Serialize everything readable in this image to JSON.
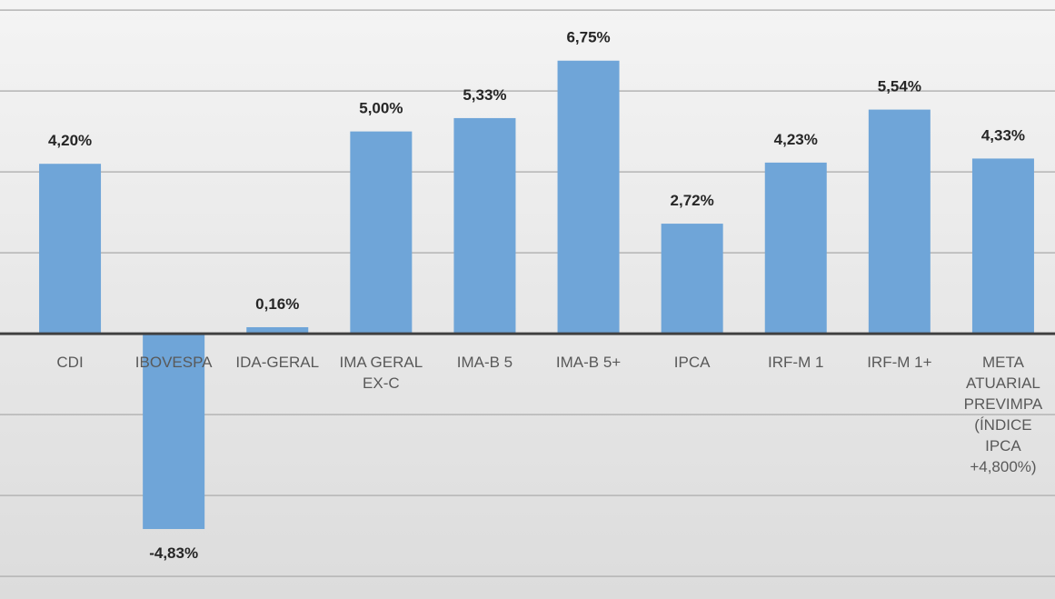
{
  "chart_data": {
    "type": "bar",
    "categories": [
      "CDI",
      "IBOVESPA",
      "IDA-GERAL",
      "IMA GERAL EX-C",
      "IMA-B 5",
      "IMA-B 5+",
      "IPCA",
      "IRF-M 1",
      "IRF-M 1+",
      "META ATUARIAL PREVIMPA (ÍNDICE IPCA +4,800%)"
    ],
    "values": [
      4.2,
      -4.83,
      0.16,
      5.0,
      5.33,
      6.75,
      2.72,
      4.23,
      5.54,
      4.33
    ],
    "value_labels": [
      "4,20%",
      "-4,83%",
      "0,16%",
      "5,00%",
      "5,33%",
      "6,75%",
      "2,72%",
      "4,23%",
      "5,54%",
      "4,33%"
    ],
    "color": "#6fa5d8",
    "ylim": [
      -6.56,
      8.25
    ],
    "yticks": [
      -6,
      -4,
      -2,
      0,
      2,
      4,
      6,
      8
    ],
    "grid": true
  }
}
